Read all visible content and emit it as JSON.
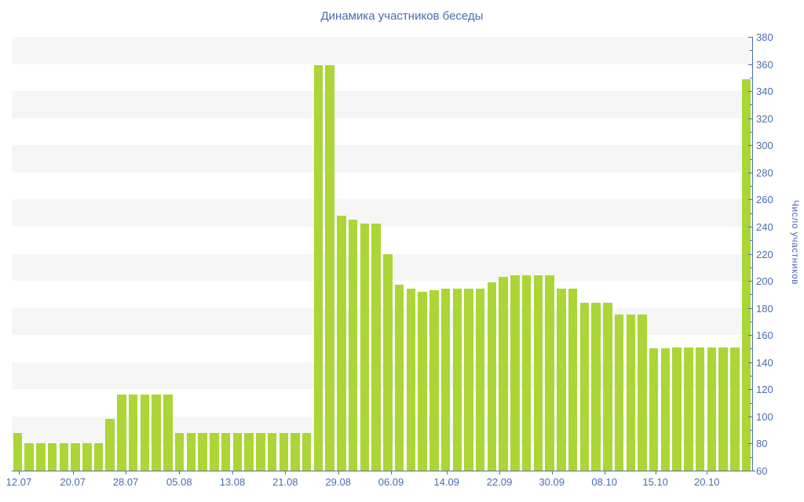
{
  "title": "Динамика участников беседы",
  "chart_data": {
    "type": "bar",
    "title": "Динамика участников беседы",
    "xlabel": "",
    "ylabel": "Число участников",
    "ylim": [
      60,
      380
    ],
    "y_tick_step": 20,
    "y_minor_tick_step": 10,
    "grid": "alternating horizontal bands, 20-unit, gray on 80-100 up to 360-380",
    "legend": "none",
    "x_tick_labels": [
      "12.07",
      "20.07",
      "28.07",
      "05.08",
      "13.08",
      "21.08",
      "29.08",
      "06.09",
      "14.09",
      "22.09",
      "30.09",
      "08.10",
      "15.10",
      "20.10"
    ],
    "x_tick_positions": [
      0.0095,
      0.0824,
      0.1538,
      0.2262,
      0.298,
      0.3694,
      0.4408,
      0.5122,
      0.5872,
      0.6586,
      0.7293,
      0.8003,
      0.8692,
      0.9388
    ],
    "values": [
      88,
      80,
      80,
      80,
      80,
      80,
      80,
      80,
      98,
      116,
      116,
      116,
      116,
      116,
      88,
      88,
      88,
      88,
      88,
      88,
      88,
      88,
      88,
      88,
      88,
      88,
      359,
      359,
      248,
      245,
      242,
      242,
      220,
      197,
      194,
      192,
      193,
      194,
      194,
      194,
      194,
      199,
      203,
      204,
      204,
      204,
      204,
      194,
      194,
      184,
      184,
      184,
      175,
      175,
      175,
      150,
      150,
      151,
      151,
      151,
      151,
      151,
      151,
      349
    ],
    "bar_color": "#abd636",
    "band_color": "#f6f6f7",
    "axis_color": "#4c6fb5",
    "text_color": "#4a6cae"
  }
}
